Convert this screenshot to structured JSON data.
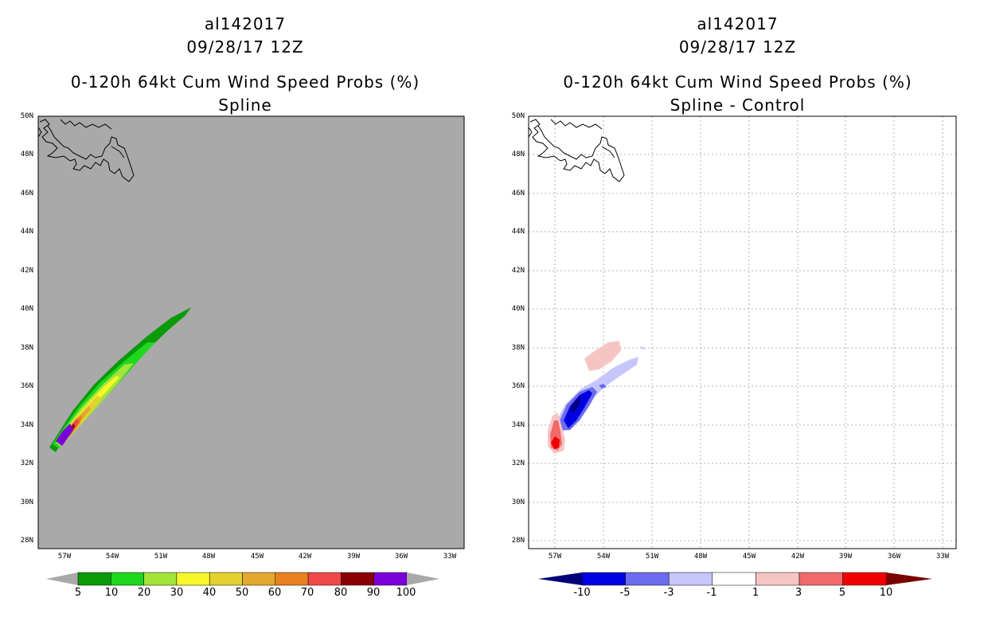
{
  "left_panel": {
    "title_lines": [
      "al142017",
      "09/28/17 12Z",
      "0-120h 64kt Cum Wind Speed Probs (%)",
      "Spline"
    ],
    "colorbar_labels": [
      "5",
      "10",
      "20",
      "30",
      "40",
      "50",
      "60",
      "70",
      "80",
      "90",
      "100"
    ],
    "colorbar_colors": [
      "#0a9a0a",
      "#1ed81e",
      "#a4e33a",
      "#f6f72a",
      "#e3d12e",
      "#e3a82e",
      "#e8821e",
      "#f04848",
      "#8a0000",
      "#7a00d9"
    ],
    "background": "#a9a9a9"
  },
  "right_panel": {
    "title_lines": [
      "al142017",
      "09/28/17 12Z",
      "0-120h 64kt Cum Wind Speed Probs (%)",
      "Spline - Control"
    ],
    "colorbar_labels": [
      "-10",
      "-5",
      "-3",
      "-1",
      "1",
      "3",
      "5",
      "10"
    ],
    "colorbar_colors": [
      "#0000e0",
      "#6c6cf0",
      "#c6c6fa",
      "#ffffff",
      "#f7c4c4",
      "#f06a6a",
      "#f00000"
    ],
    "colorbar_low": "#00007a",
    "colorbar_high": "#7a0000"
  },
  "axes": {
    "lat_labels": [
      "50N",
      "48N",
      "46N",
      "44N",
      "42N",
      "40N",
      "38N",
      "36N",
      "34N",
      "32N",
      "30N",
      "28N"
    ],
    "lon_labels": [
      "57W",
      "54W",
      "51W",
      "48W",
      "45W",
      "42W",
      "39W",
      "36W",
      "33W"
    ],
    "lat_range": [
      27.6,
      50.0
    ],
    "lon_range": [
      -58.4,
      -32.0
    ]
  }
}
